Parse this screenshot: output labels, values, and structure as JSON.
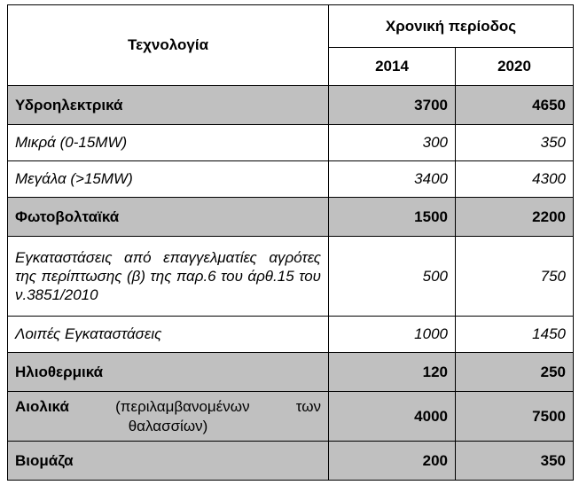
{
  "header": {
    "technology": "Τεχνολογία",
    "period": "Χρονική περίοδος",
    "year1": "2014",
    "year2": "2020"
  },
  "rows": [
    {
      "label": "Υδροηλεκτρικά",
      "v2014": "3700",
      "v2020": "4650",
      "kind": "main"
    },
    {
      "label": "Μικρά (0-15MW)",
      "v2014": "300",
      "v2020": "350",
      "kind": "sub"
    },
    {
      "label": "Μεγάλα (>15MW)",
      "v2014": "3400",
      "v2020": "4300",
      "kind": "sub"
    },
    {
      "label": "Φωτοβολταϊκά",
      "v2014": "1500",
      "v2020": "2200",
      "kind": "main"
    },
    {
      "label": "Εγκαταστάσεις από επαγγελματίες αγρότες της περίπτωσης (β) της παρ.6 του άρθ.15 του ν.3851/2010",
      "v2014": "500",
      "v2020": "750",
      "kind": "sub"
    },
    {
      "label": "Λοιπές Εγκαταστάσεις",
      "v2014": "1000",
      "v2020": "1450",
      "kind": "sub"
    },
    {
      "label": "Ηλιοθερμικά",
      "v2014": "120",
      "v2020": "250",
      "kind": "main"
    },
    {
      "label": "Αιολικά",
      "label_extra_1": "(περιλαμβανομένων",
      "label_extra_2": "των",
      "label_extra_3": "θαλασσίων)",
      "v2014": "4000",
      "v2020": "7500",
      "kind": "main"
    },
    {
      "label": "Βιομάζα",
      "v2014": "200",
      "v2020": "350",
      "kind": "main"
    }
  ]
}
